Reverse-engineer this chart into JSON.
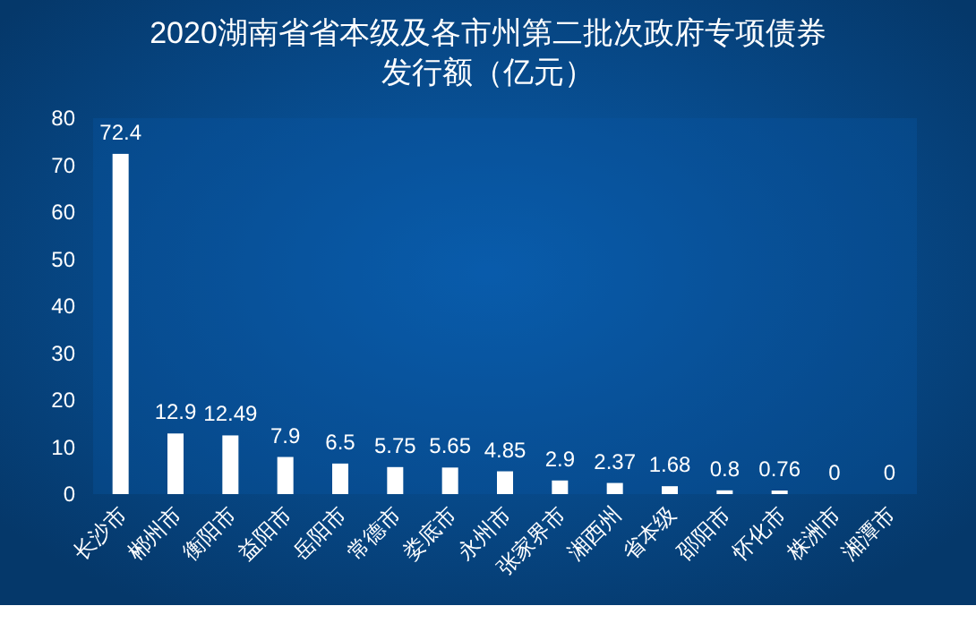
{
  "chart_data": {
    "type": "bar",
    "title": "2020湖南省省本级及各市州第二批次政府专项债券",
    "subtitle": "发行额（亿元）",
    "categories": [
      "长沙市",
      "郴州市",
      "衡阳市",
      "益阳市",
      "岳阳市",
      "常德市",
      "娄底市",
      "永州市",
      "张家界市",
      "湘西州",
      "省本级",
      "邵阳市",
      "怀化市",
      "株洲市",
      "湘潭市"
    ],
    "values": [
      72.4,
      12.9,
      12.49,
      7.9,
      6.5,
      5.75,
      5.65,
      4.85,
      2.9,
      2.37,
      1.68,
      0.8,
      0.76,
      0,
      0
    ],
    "color": "#ffffff",
    "ylim": [
      0,
      80
    ],
    "yticks": [
      0,
      10,
      20,
      30,
      40,
      50,
      60,
      70,
      80
    ],
    "grid": false,
    "data_labels": true
  }
}
